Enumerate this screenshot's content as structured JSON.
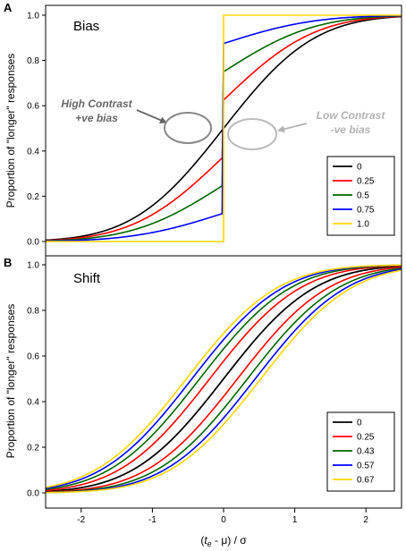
{
  "chart_data": [
    {
      "panel": "A",
      "title": "Bias",
      "type": "line",
      "xlim": [
        -2.5,
        2.5
      ],
      "ylim": [
        0,
        1
      ],
      "xticks": [
        "-2",
        "-1",
        "0",
        "1",
        "2"
      ],
      "yticks": [
        "0.0",
        "0.2",
        "0.4",
        "0.6",
        "0.8",
        "1.0"
      ],
      "ylabel": "Proportion of \"longer\" responses",
      "legend": {
        "position": "bottom-right"
      },
      "series": [
        {
          "name": "0",
          "bias": 0,
          "color": "#000000"
        },
        {
          "name": "0.25",
          "bias": 0.25,
          "color": "#ff0000"
        },
        {
          "name": "0.5",
          "bias": 0.5,
          "color": "#006400"
        },
        {
          "name": "0.75",
          "bias": 0.75,
          "color": "#0000ff"
        },
        {
          "name": "1.0",
          "bias": 1.0,
          "color": "#ffd700"
        }
      ],
      "annotations": [
        {
          "lines": [
            "High Contrast",
            "+ve bias"
          ],
          "tone": "dark"
        },
        {
          "lines": [
            "Low Contrast",
            "-ve bias"
          ],
          "tone": "light"
        }
      ]
    },
    {
      "panel": "B",
      "title": "Shift",
      "type": "line",
      "xlim": [
        -2.5,
        2.5
      ],
      "ylim": [
        0,
        1
      ],
      "xticks": [
        "-2",
        "-1",
        "0",
        "1",
        "2"
      ],
      "yticks": [
        "0.0",
        "0.2",
        "0.4",
        "0.6",
        "0.8",
        "1.0"
      ],
      "ylabel": "Proportion of \"longer\" responses",
      "legend": {
        "position": "bottom-right"
      },
      "series": [
        {
          "name": "0",
          "shift": 0,
          "color": "#000000"
        },
        {
          "name": "0.25",
          "shift": 0.25,
          "color": "#ff0000"
        },
        {
          "name": "0.43",
          "shift": 0.43,
          "color": "#006400"
        },
        {
          "name": "0.57",
          "shift": 0.57,
          "color": "#0000ff"
        },
        {
          "name": "0.67",
          "shift": 0.67,
          "color": "#ffd700"
        }
      ]
    }
  ],
  "xlabel_parts": {
    "open": "(",
    "t": "t",
    "sub": "e",
    "rest": " - μ) / σ"
  }
}
